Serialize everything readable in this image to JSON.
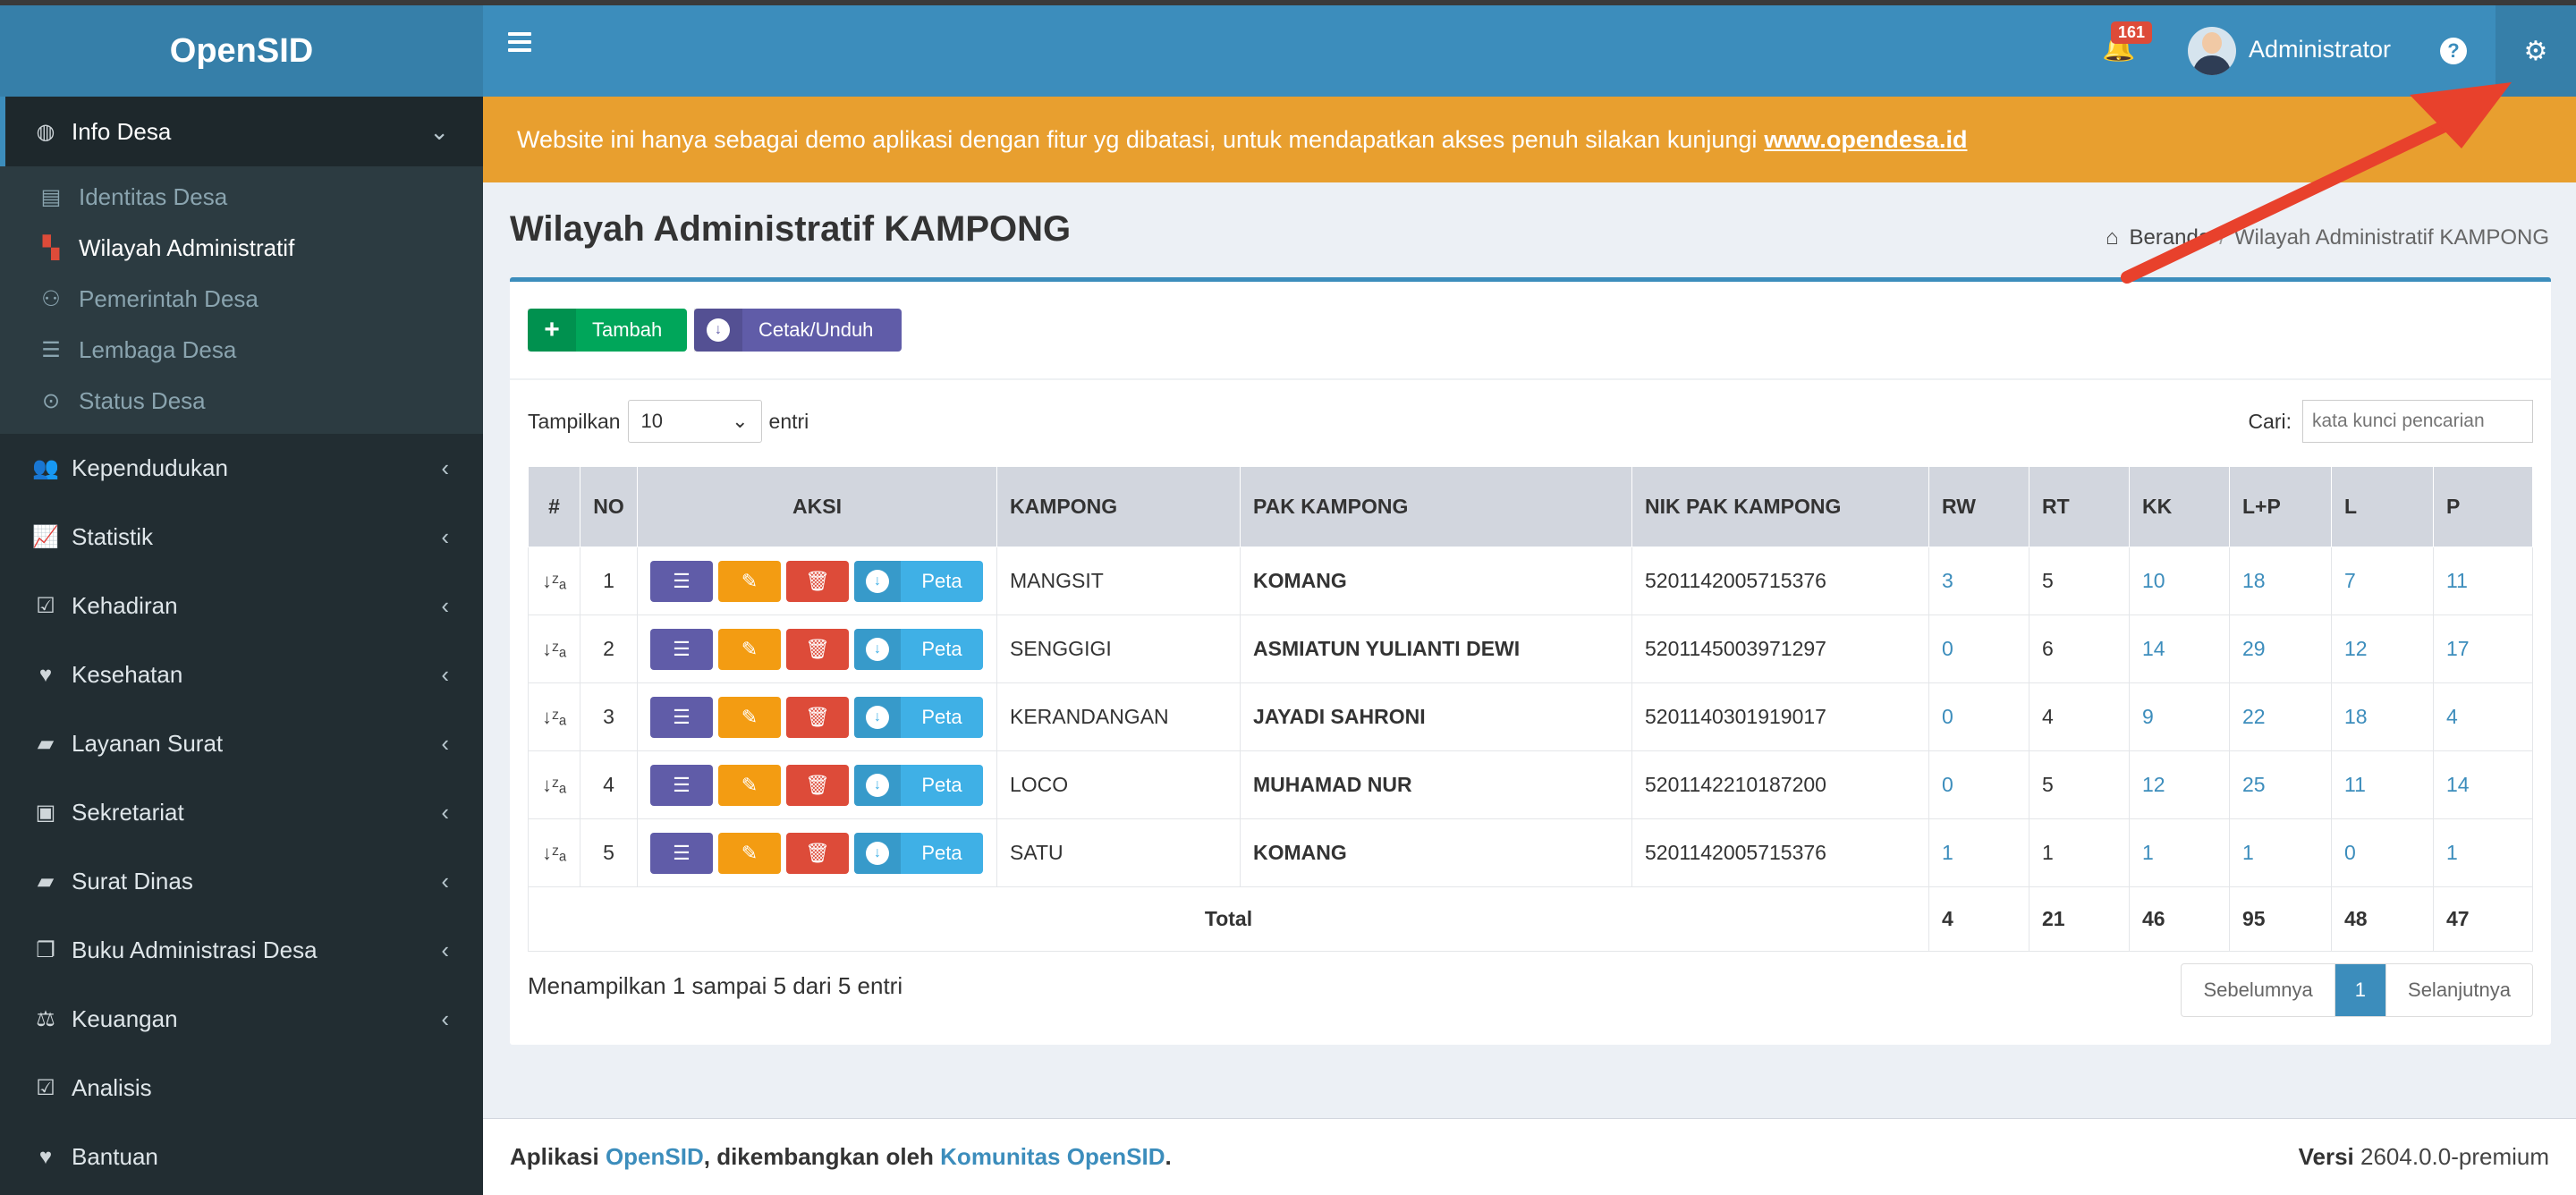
{
  "app": {
    "logo": "OpenSID"
  },
  "sidebar": {
    "active_item": {
      "label": "Info Desa",
      "icon": "palette-icon"
    },
    "submenu": [
      {
        "label": "Identitas Desa",
        "icon": "id-card-icon",
        "active": false
      },
      {
        "label": "Wilayah Administratif",
        "icon": "map-icon",
        "active": true
      },
      {
        "label": "Pemerintah Desa",
        "icon": "sitemap-icon",
        "active": false
      },
      {
        "label": "Lembaga Desa",
        "icon": "list-icon",
        "active": false
      },
      {
        "label": "Status Desa",
        "icon": "dot-circle-icon",
        "active": false
      }
    ],
    "items": [
      {
        "label": "Kependudukan",
        "icon": "users-icon",
        "chevron": true
      },
      {
        "label": "Statistik",
        "icon": "line-chart-icon",
        "chevron": true
      },
      {
        "label": "Kehadiran",
        "icon": "calendar-check-icon",
        "chevron": true
      },
      {
        "label": "Kesehatan",
        "icon": "heartbeat-icon",
        "chevron": true
      },
      {
        "label": "Layanan Surat",
        "icon": "book-icon",
        "chevron": true
      },
      {
        "label": "Sekretariat",
        "icon": "archive-icon",
        "chevron": true
      },
      {
        "label": "Surat Dinas",
        "icon": "book-icon",
        "chevron": true
      },
      {
        "label": "Buku Administrasi Desa",
        "icon": "copy-icon",
        "chevron": true
      },
      {
        "label": "Keuangan",
        "icon": "balance-scale-icon",
        "chevron": true
      },
      {
        "label": "Analisis",
        "icon": "check-square-icon",
        "chevron": false
      },
      {
        "label": "Bantuan",
        "icon": "heart-icon",
        "chevron": false
      }
    ]
  },
  "header": {
    "notification_count": "161",
    "user_name": "Administrator",
    "help_label": "?"
  },
  "notice": {
    "text": "Website ini hanya sebagai demo aplikasi dengan fitur yg dibatasi, untuk mendapatkan akses penuh silakan kunjungi",
    "link": "www.opendesa.id"
  },
  "page": {
    "title": "Wilayah Administratif KAMPONG",
    "breadcrumb_home": "Beranda",
    "breadcrumb_sep": "/",
    "breadcrumb_current": "Wilayah Administratif KAMPONG"
  },
  "toolbar": {
    "add_label": "Tambah",
    "print_label": "Cetak/Unduh"
  },
  "table_controls": {
    "show_label": "Tampilkan",
    "page_size": "10",
    "entries_label": "entri",
    "search_label": "Cari:",
    "search_placeholder": "kata kunci pencarian"
  },
  "table": {
    "headers": [
      "#",
      "NO",
      "AKSI",
      "KAMPONG",
      "PAK KAMPONG",
      "NIK PAK KAMPONG",
      "RW",
      "RT",
      "KK",
      "L+P",
      "L",
      "P"
    ],
    "map_label": "Peta",
    "rows": [
      {
        "no": "1",
        "kampong": "MANGSIT",
        "pak": "KOMANG",
        "nik": "5201142005715376",
        "rw": "3",
        "rt": "5",
        "kk": "10",
        "lp": "18",
        "l": "7",
        "p": "11"
      },
      {
        "no": "2",
        "kampong": "SENGGIGI",
        "pak": "ASMIATUN YULIANTI DEWI",
        "nik": "5201145003971297",
        "rw": "0",
        "rt": "6",
        "kk": "14",
        "lp": "29",
        "l": "12",
        "p": "17"
      },
      {
        "no": "3",
        "kampong": "KERANDANGAN",
        "pak": "JAYADI SAHRONI",
        "nik": "5201140301919017",
        "rw": "0",
        "rt": "4",
        "kk": "9",
        "lp": "22",
        "l": "18",
        "p": "4"
      },
      {
        "no": "4",
        "kampong": "LOCO",
        "pak": "MUHAMAD NUR",
        "nik": "5201142210187200",
        "rw": "0",
        "rt": "5",
        "kk": "12",
        "lp": "25",
        "l": "11",
        "p": "14"
      },
      {
        "no": "5",
        "kampong": "SATU",
        "pak": "KOMANG",
        "nik": "5201142005715376",
        "rw": "1",
        "rt": "1",
        "kk": "1",
        "lp": "1",
        "l": "0",
        "p": "1"
      }
    ],
    "total": {
      "label": "Total",
      "rw": "4",
      "rt": "21",
      "kk": "46",
      "lp": "95",
      "l": "48",
      "p": "47"
    }
  },
  "pagination": {
    "info": "Menampilkan 1 sampai 5 dari 5 entri",
    "prev": "Sebelumnya",
    "current": "1",
    "next": "Selanjutnya"
  },
  "footer": {
    "prefix": "Aplikasi",
    "app_link": "OpenSID",
    "middle": ", dikembangkan oleh",
    "community_link": "Komunitas OpenSID",
    "suffix": ".",
    "version_label": "Versi",
    "version": "2604.0.0-premium"
  },
  "colors": {
    "primary": "#3c8dbc",
    "sidebar": "#222d32",
    "notice": "#e89f2f",
    "annotation_arrow": "#e8412c"
  }
}
